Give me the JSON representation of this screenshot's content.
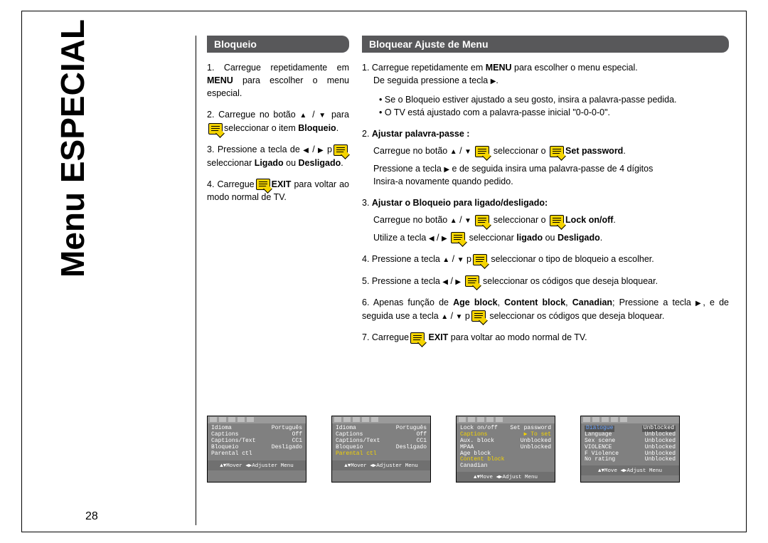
{
  "page_title_vertical": "Menu ESPECIAL",
  "page_number": "28",
  "left": {
    "header": "Bloqueio",
    "steps": [
      {
        "n": "1.",
        "pre": "Carregue repetidamente em ",
        "bold1": "MENU",
        "post1": " para escolher o menu especial."
      },
      {
        "n": "2.",
        "pre": "Carregue no botão ",
        "mid": " para ",
        "post": "seleccionar o item ",
        "bold1": "Bloqueio",
        "tail": "."
      },
      {
        "n": "3.",
        "pre": "Pressione a tecla de ",
        "mid": " p",
        "post": "seleccionar ",
        "bold1": "Ligado",
        "conj": " ou ",
        "bold2": "Desligado",
        "tail": "."
      },
      {
        "n": "4.",
        "pre": "Carregue",
        "bold1": "EXIT",
        "post1": " para voltar ao modo normal de TV."
      }
    ]
  },
  "right": {
    "header": "Bloquear Ajuste de Menu",
    "step1_a": "Carregue repetidamente em ",
    "step1_bold": "MENU",
    "step1_b": " para escolher o menu especial.",
    "step1_c": "De seguida pressione a tecla ",
    "bullet1": "Se o Bloqueio estiver ajustado a seu gosto, insira a palavra-passe pedida.",
    "bullet2": "O TV está ajustado com a palavra-passe inicial \"0-0-0-0\".",
    "step2_header": "Ajustar palavra-passe :",
    "step2_a": "Carregue no botão ",
    "step2_b": " seleccionar o ",
    "step2_bold": "Set password",
    "step2_c": "Pressione a tecla ",
    "step2_d": " e de seguida insira uma palavra-passe de 4 dígitos",
    "step2_e": "Insira-a novamente quando pedido.",
    "step3_header": "Ajustar o Bloqueio para ligado/desligado:",
    "step3_a": "Carregue no botão ",
    "step3_b": " seleccionar o ",
    "step3_bold": "Lock on/off",
    "step3_c": "Utilize a tecla ",
    "step3_d": " seleccionar ",
    "step3_bold2": "ligado",
    "step3_e": " ou ",
    "step3_bold3": "Desligado",
    "step4_a": "Pressione a tecla ",
    "step4_b": " seleccionar o tipo de bloqueio a escolher.",
    "step5_a": "Pressione a tecla ",
    "step5_b": " seleccionar os códigos que deseja bloquear.",
    "step6_a": "Apenas função de ",
    "step6_b1": "Age block",
    "step6_b2": "Content block",
    "step6_b3": "Canadian",
    "step6_c": "; Pressione a tecla ",
    "step6_d": ", e de seguida use a tecla ",
    "step6_e": " seleccionar os códigos que deseja bloquear.",
    "step7_a": "Carregue",
    "step7_bold": "EXIT",
    "step7_b": " para voltar ao modo normal de TV."
  },
  "screenshots": [
    {
      "rows": [
        {
          "l": "Idioma",
          "r": "Português"
        },
        {
          "l": "Captions",
          "r": "Off"
        },
        {
          "l": "Captions/Text",
          "r": "CC1"
        },
        {
          "l": "Bloqueio",
          "r": "Desligado"
        },
        {
          "l": "Parental ctl",
          "r": ""
        }
      ],
      "footer": "▲▼Mover ◀▶Adjuster Menu"
    },
    {
      "rows": [
        {
          "l": "Idioma",
          "r": "Português"
        },
        {
          "l": "Captions",
          "r": "Off"
        },
        {
          "l": "Captions/Text",
          "r": "CC1"
        },
        {
          "l": "Bloqueio",
          "r": "Desligado"
        },
        {
          "l": "Parental ctl",
          "r": "",
          "hl": true
        }
      ],
      "footer": "▲▼Mover ◀▶Adjuster Menu"
    },
    {
      "rows": [
        {
          "l": "Lock on/off",
          "r": "Set password"
        },
        {
          "l": "Captions",
          "r": "▶ To set",
          "hl": true
        },
        {
          "l": "Aux. block",
          "r": "Unblocked"
        },
        {
          "l": "MPAA",
          "r": "Unblocked"
        },
        {
          "l": "Age block",
          "r": ""
        },
        {
          "l": "Content block",
          "r": "",
          "hl": true
        },
        {
          "l": "Canadian",
          "r": ""
        }
      ],
      "footer": "▲▼Move ◀▶Adjust Menu"
    },
    {
      "rows": [
        {
          "l": "Dialogue",
          "r": "Unblocked",
          "hlbox": true
        },
        {
          "l": "Language",
          "r": "Unblocked"
        },
        {
          "l": "Sex scene",
          "r": "Unblocked"
        },
        {
          "l": "VIOLENCE",
          "r": "Unblocked"
        },
        {
          "l": "F Violence",
          "r": "Unblocked"
        },
        {
          "l": "No rating",
          "r": "Unblocked"
        }
      ],
      "footer": "▲▼Move ◀▶Adjust Menu"
    }
  ]
}
